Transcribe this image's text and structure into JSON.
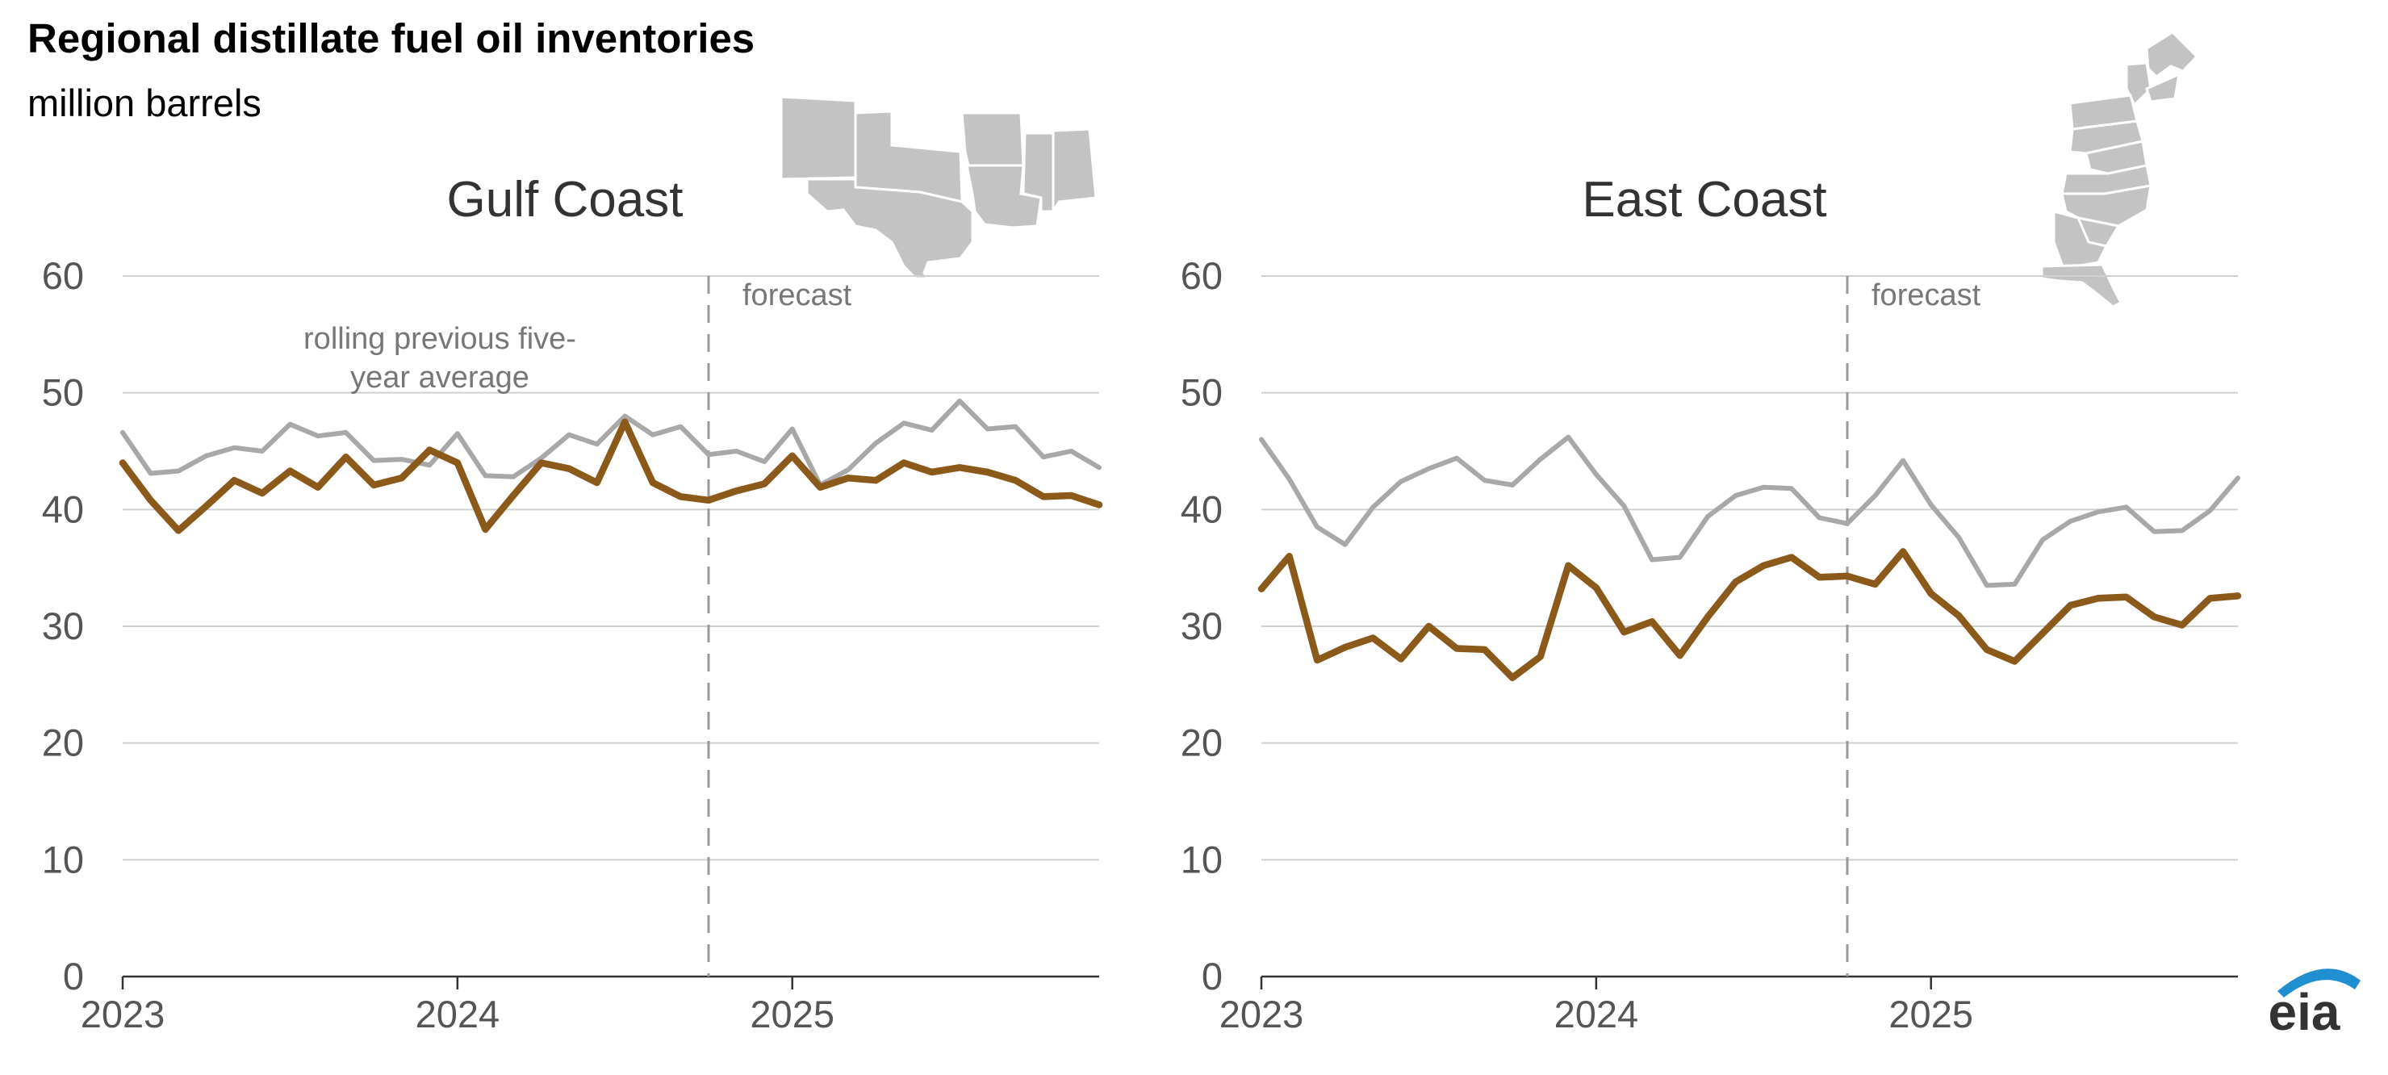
{
  "title": "Regional distillate fuel oil inventories",
  "subtitle": "million barrels",
  "colors": {
    "inventory": "#8b5a1b",
    "average": "#a8a8a8",
    "grid": "#d0d0d0",
    "logo": "#1f8fd1"
  },
  "logo_text": "eia",
  "chart_data": [
    {
      "type": "line",
      "panel_title": "Gulf Coast",
      "x_start": "2023-01",
      "x_step": "month",
      "x_ticks": [
        "2023",
        "2024",
        "2025"
      ],
      "y_ticks": [
        "0",
        "10",
        "20",
        "30",
        "40",
        "50",
        "60"
      ],
      "ylim": [
        0,
        60
      ],
      "forecast_start": "2024-10",
      "forecast_label": "forecast",
      "average_label": [
        "rolling previous five-",
        "year average"
      ],
      "grid": true,
      "series": [
        {
          "key": "average",
          "values": [
            46.6,
            43.1,
            43.3,
            44.6,
            45.3,
            45.0,
            47.3,
            46.3,
            46.6,
            44.2,
            44.3,
            43.8,
            46.5,
            42.9,
            42.8,
            44.4,
            46.4,
            45.6,
            48.0,
            46.4,
            47.1,
            44.7,
            45.0,
            44.1,
            46.9,
            42.1,
            43.4,
            45.7,
            47.4,
            46.8,
            49.3,
            46.9,
            47.1,
            44.5,
            45.0,
            43.6
          ]
        },
        {
          "key": "inventory",
          "values": [
            44.0,
            40.8,
            38.2,
            40.3,
            42.5,
            41.4,
            43.3,
            41.9,
            44.5,
            42.1,
            42.7,
            45.1,
            44.0,
            38.3,
            41.2,
            44.0,
            43.5,
            42.3,
            47.5,
            42.3,
            41.1,
            40.8,
            41.6,
            42.2,
            44.6,
            41.9,
            42.7,
            42.5,
            44.0,
            43.2,
            43.6,
            43.2,
            42.5,
            41.1,
            41.2,
            40.4
          ]
        }
      ]
    },
    {
      "type": "line",
      "panel_title": "East Coast",
      "x_start": "2023-01",
      "x_step": "month",
      "x_ticks": [
        "2023",
        "2024",
        "2025"
      ],
      "y_ticks": [
        "0",
        "10",
        "20",
        "30",
        "40",
        "50",
        "60"
      ],
      "ylim": [
        0,
        60
      ],
      "forecast_start": "2024-10",
      "forecast_label": "forecast",
      "grid": true,
      "series": [
        {
          "key": "average",
          "values": [
            46.0,
            42.6,
            38.5,
            37.0,
            40.2,
            42.4,
            43.5,
            44.4,
            42.5,
            42.1,
            44.3,
            46.2,
            43.0,
            40.3,
            35.7,
            35.9,
            39.4,
            41.2,
            41.9,
            41.8,
            39.3,
            38.8,
            41.2,
            44.2,
            40.4,
            37.6,
            33.5,
            33.6,
            37.4,
            39.0,
            39.8,
            40.2,
            38.1,
            38.2,
            39.9,
            42.7
          ]
        },
        {
          "key": "inventory",
          "values": [
            33.2,
            36.0,
            27.1,
            28.2,
            29.0,
            27.2,
            30.0,
            28.1,
            28.0,
            25.6,
            27.4,
            35.2,
            33.3,
            29.5,
            30.4,
            27.5,
            30.8,
            33.8,
            35.2,
            35.9,
            34.2,
            34.3,
            33.6,
            36.4,
            32.8,
            30.9,
            28.0,
            27.0,
            29.4,
            31.8,
            32.4,
            32.5,
            30.8,
            30.1,
            32.4,
            32.6
          ]
        }
      ]
    }
  ]
}
